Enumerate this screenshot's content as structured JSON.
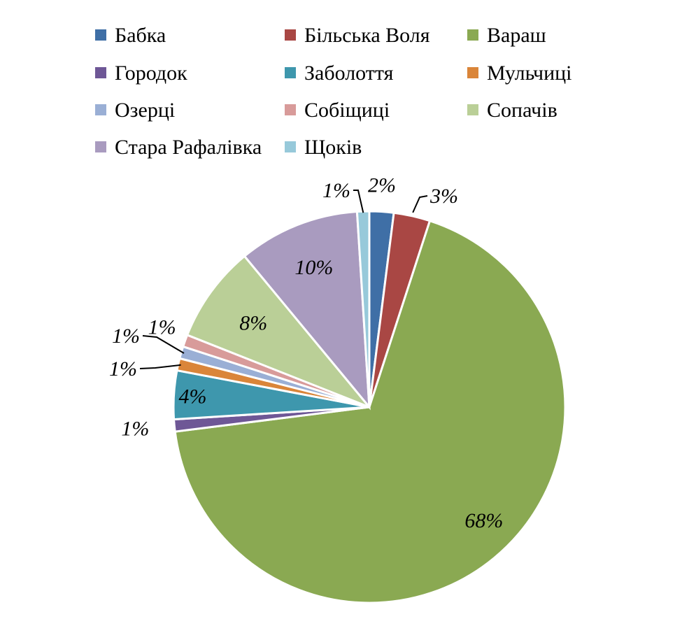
{
  "chart_data": {
    "type": "pie",
    "legend_position": "top",
    "slices": [
      {
        "name": "Бабка",
        "value": 2,
        "label": "2%",
        "color": "#3F6FA6"
      },
      {
        "name": "Більська Воля",
        "value": 3,
        "label": "3%",
        "color": "#A94744"
      },
      {
        "name": "Вараш",
        "value": 68,
        "label": "68%",
        "color": "#8AA952"
      },
      {
        "name": "Городок",
        "value": 1,
        "label": "1%",
        "color": "#6E5796"
      },
      {
        "name": "Заболоття",
        "value": 4,
        "label": "4%",
        "color": "#3E97AD"
      },
      {
        "name": "Мульчиці",
        "value": 1,
        "label": "1%",
        "color": "#DA8539"
      },
      {
        "name": "Озерці",
        "value": 1,
        "label": "1%",
        "color": "#9AAFD5"
      },
      {
        "name": "Собіщиці",
        "value": 1,
        "label": "1%",
        "color": "#D89B9A"
      },
      {
        "name": "Сопачів",
        "value": 8,
        "label": "8%",
        "color": "#BACF97"
      },
      {
        "name": "Стара Рафалівка",
        "value": 10,
        "label": "10%",
        "color": "#A99BBF"
      },
      {
        "name": "Щоків",
        "value": 1,
        "label": "1%",
        "color": "#97C9DA"
      }
    ]
  }
}
